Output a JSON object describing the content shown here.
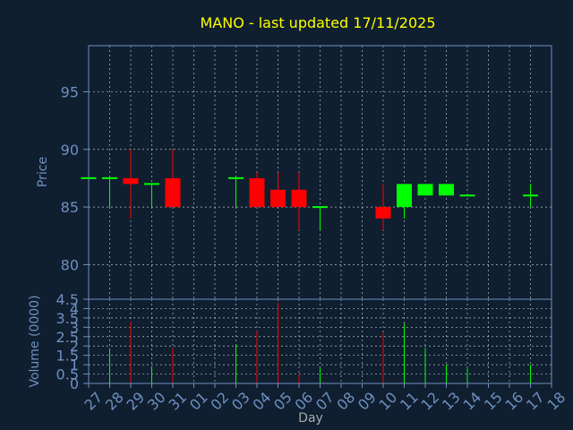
{
  "colors": {
    "background": "#0f1f30",
    "frame": "#6f8fc0",
    "grid": "#ffffff",
    "title": "#ffff00",
    "axis_text": "#6f8fc0",
    "xlabel_text": "#aaaaaa",
    "up": "#00ff00",
    "down": "#ff0000"
  },
  "chart_data": [
    {
      "type": "candlestick",
      "title": "MANO - last updated 17/11/2025",
      "xlabel": "",
      "ylabel": "Price",
      "ylim": [
        77,
        99
      ],
      "yticks": [
        80,
        85,
        90,
        95
      ],
      "x_ticks": [
        "27",
        "28",
        "29",
        "30",
        "31",
        "01",
        "02",
        "03",
        "04",
        "05",
        "06",
        "07",
        "08",
        "09",
        "10",
        "11",
        "12",
        "13",
        "14",
        "15",
        "16",
        "17",
        "18"
      ],
      "grid": true,
      "candles": [
        {
          "day": "27",
          "open": 87.5,
          "high": 87.5,
          "low": 87.5,
          "close": 87.5
        },
        {
          "day": "28",
          "open": 87.5,
          "high": 87.5,
          "low": 85.0,
          "close": 87.5
        },
        {
          "day": "29",
          "open": 87.5,
          "high": 90.0,
          "low": 84.0,
          "close": 87.0
        },
        {
          "day": "30",
          "open": 87.0,
          "high": 87.0,
          "low": 85.0,
          "close": 87.0
        },
        {
          "day": "31",
          "open": 87.5,
          "high": 90.0,
          "low": 85.0,
          "close": 85.0
        },
        {
          "day": "03",
          "open": 87.5,
          "high": 87.5,
          "low": 85.0,
          "close": 87.5
        },
        {
          "day": "04",
          "open": 87.5,
          "high": 88.0,
          "low": 85.0,
          "close": 85.0
        },
        {
          "day": "05",
          "open": 86.5,
          "high": 88.0,
          "low": 85.0,
          "close": 85.0
        },
        {
          "day": "06",
          "open": 86.5,
          "high": 88.0,
          "low": 83.0,
          "close": 85.0
        },
        {
          "day": "07",
          "open": 85.0,
          "high": 85.0,
          "low": 83.0,
          "close": 85.0
        },
        {
          "day": "10",
          "open": 85.0,
          "high": 87.0,
          "low": 83.0,
          "close": 84.0
        },
        {
          "day": "11",
          "open": 85.0,
          "high": 87.0,
          "low": 84.0,
          "close": 87.0
        },
        {
          "day": "12",
          "open": 86.0,
          "high": 87.0,
          "low": 86.0,
          "close": 87.0
        },
        {
          "day": "13",
          "open": 86.0,
          "high": 87.0,
          "low": 86.0,
          "close": 87.0
        },
        {
          "day": "14",
          "open": 86.0,
          "high": 86.0,
          "low": 86.0,
          "close": 86.0
        },
        {
          "day": "17",
          "open": 86.0,
          "high": 87.0,
          "low": 85.0,
          "close": 86.0
        }
      ]
    },
    {
      "type": "bar",
      "xlabel": "Day",
      "ylabel": "Volume (0000)",
      "ylim": [
        0,
        4.5
      ],
      "yticks": [
        "0",
        "0.5",
        "1",
        "1.5",
        "2",
        "2.5",
        "3",
        "3.5",
        "4",
        "4.5"
      ],
      "grid": true,
      "volumes": [
        {
          "day": "27",
          "value": 0,
          "dir": "up"
        },
        {
          "day": "28",
          "value": 1.8,
          "dir": "up"
        },
        {
          "day": "29",
          "value": 3.3,
          "dir": "down"
        },
        {
          "day": "30",
          "value": 0.9,
          "dir": "up"
        },
        {
          "day": "31",
          "value": 1.9,
          "dir": "down"
        },
        {
          "day": "03",
          "value": 2.1,
          "dir": "up"
        },
        {
          "day": "04",
          "value": 2.8,
          "dir": "down"
        },
        {
          "day": "05",
          "value": 4.3,
          "dir": "down"
        },
        {
          "day": "06",
          "value": 0.5,
          "dir": "down"
        },
        {
          "day": "07",
          "value": 0.8,
          "dir": "up"
        },
        {
          "day": "10",
          "value": 2.7,
          "dir": "down"
        },
        {
          "day": "11",
          "value": 3.2,
          "dir": "up"
        },
        {
          "day": "12",
          "value": 1.9,
          "dir": "up"
        },
        {
          "day": "13",
          "value": 1.0,
          "dir": "up"
        },
        {
          "day": "14",
          "value": 0.8,
          "dir": "up"
        },
        {
          "day": "17",
          "value": 1.0,
          "dir": "up"
        }
      ]
    }
  ]
}
